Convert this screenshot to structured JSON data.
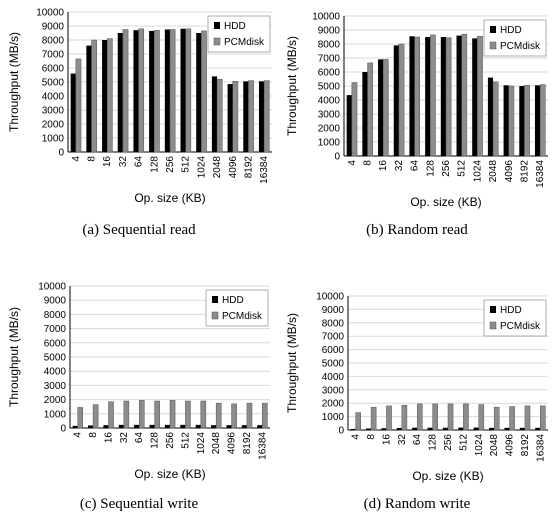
{
  "chart_data": [
    {
      "type": "bar",
      "caption": "(a) Sequential read",
      "categories": [
        "4",
        "8",
        "16",
        "32",
        "64",
        "128",
        "256",
        "512",
        "1024",
        "2048",
        "4096",
        "8192",
        "16384"
      ],
      "series": [
        {
          "name": "HDD",
          "color": "#000000",
          "values": [
            5600,
            7600,
            8000,
            8500,
            8700,
            8650,
            8750,
            8800,
            8500,
            5400,
            4850,
            5050,
            5050
          ]
        },
        {
          "name": "PCMdisk",
          "color": "#8c8c8c",
          "values": [
            6650,
            8000,
            8100,
            8750,
            8800,
            8700,
            8750,
            8800,
            8650,
            5200,
            5050,
            5100,
            5100
          ]
        }
      ],
      "xlabel": "Op. size (KB)",
      "ylabel": "Throughput (MB/s)",
      "ylim": [
        0,
        10000
      ],
      "yticks": [
        "0",
        "1000",
        "2000",
        "3000",
        "4000",
        "5000",
        "6000",
        "7000",
        "8000",
        "9000",
        "10000"
      ],
      "grid": true,
      "legend_position": "top-right"
    },
    {
      "type": "bar",
      "caption": "(b) Random read",
      "categories": [
        "4",
        "8",
        "16",
        "32",
        "64",
        "128",
        "256",
        "512",
        "1024",
        "2048",
        "4096",
        "8192",
        "16384"
      ],
      "series": [
        {
          "name": "HDD",
          "color": "#000000",
          "values": [
            4350,
            6000,
            6900,
            7900,
            8550,
            8500,
            8500,
            8600,
            8400,
            5600,
            5050,
            5000,
            5050
          ]
        },
        {
          "name": "PCMdisk",
          "color": "#8c8c8c",
          "values": [
            5250,
            6650,
            6900,
            8000,
            8500,
            8650,
            8450,
            8700,
            8550,
            5300,
            5000,
            5050,
            5100
          ]
        }
      ],
      "xlabel": "Op. size (KB)",
      "ylabel": "Throughput (MB/s)",
      "ylim": [
        0,
        10000
      ],
      "yticks": [
        "0",
        "1000",
        "2000",
        "3000",
        "4000",
        "5000",
        "6000",
        "7000",
        "8000",
        "9000",
        "10000"
      ],
      "grid": true,
      "legend_position": "top-right"
    },
    {
      "type": "bar",
      "caption": "(c) Sequential write",
      "categories": [
        "4",
        "8",
        "16",
        "32",
        "64",
        "128",
        "256",
        "512",
        "1024",
        "2048",
        "4096",
        "8192",
        "16384"
      ],
      "series": [
        {
          "name": "HDD",
          "color": "#000000",
          "values": [
            150,
            180,
            200,
            220,
            220,
            220,
            220,
            220,
            220,
            200,
            200,
            200,
            200
          ]
        },
        {
          "name": "PCMdisk",
          "color": "#8c8c8c",
          "values": [
            1450,
            1650,
            1850,
            1900,
            1950,
            1900,
            1950,
            1900,
            1900,
            1750,
            1700,
            1750,
            1750
          ]
        }
      ],
      "xlabel": "Op. size (KB)",
      "ylabel": "Throughput (MB/s)",
      "ylim": [
        0,
        10000
      ],
      "yticks": [
        "0",
        "1000",
        "2000",
        "3000",
        "4000",
        "5000",
        "6000",
        "7000",
        "8000",
        "9000",
        "10000"
      ],
      "grid": true,
      "legend_position": "top-right"
    },
    {
      "type": "bar",
      "caption": "(d) Random write",
      "categories": [
        "4",
        "8",
        "16",
        "32",
        "64",
        "128",
        "256",
        "512",
        "1024",
        "2048",
        "4096",
        "8192",
        "16384"
      ],
      "series": [
        {
          "name": "HDD",
          "color": "#000000",
          "values": [
            80,
            110,
            130,
            150,
            170,
            170,
            170,
            180,
            180,
            160,
            160,
            160,
            160
          ]
        },
        {
          "name": "PCMdisk",
          "color": "#8c8c8c",
          "values": [
            1300,
            1700,
            1800,
            1850,
            1950,
            1950,
            1950,
            1950,
            1900,
            1700,
            1750,
            1800,
            1800
          ]
        }
      ],
      "xlabel": "Op. size (KB)",
      "ylabel": "Throughput (MB/s)",
      "ylim": [
        0,
        10000
      ],
      "yticks": [
        "0",
        "1000",
        "2000",
        "3000",
        "4000",
        "5000",
        "6000",
        "7000",
        "8000",
        "9000",
        "10000"
      ],
      "grid": true,
      "legend_position": "top-right"
    }
  ]
}
